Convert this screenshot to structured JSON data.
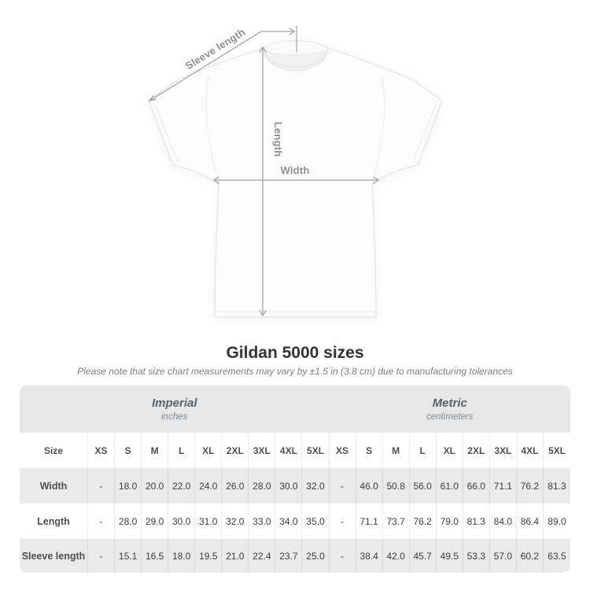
{
  "diagram": {
    "labels": {
      "sleeve": "Sleeve length",
      "length": "Length",
      "width": "Width"
    }
  },
  "chart_data": {
    "type": "table",
    "title": "Gildan 5000 sizes",
    "note": "Please note that size chart measurements may vary by ±1.5 in (3.8 cm) due to manufacturing tolerances",
    "size_header": "Size",
    "groups": [
      {
        "label": "Imperial",
        "unit": "inches"
      },
      {
        "label": "Metric",
        "unit": "centimeters"
      }
    ],
    "sizes": [
      "XS",
      "S",
      "M",
      "L",
      "XL",
      "2XL",
      "3XL",
      "4XL",
      "5XL"
    ],
    "rows": [
      {
        "label": "Width",
        "imperial": [
          "-",
          "18.0",
          "20.0",
          "22.0",
          "24.0",
          "26.0",
          "28.0",
          "30.0",
          "32.0"
        ],
        "metric": [
          "-",
          "46.0",
          "50.8",
          "56.0",
          "61.0",
          "66.0",
          "71.1",
          "76.2",
          "81.3"
        ]
      },
      {
        "label": "Length",
        "imperial": [
          "-",
          "28.0",
          "29.0",
          "30.0",
          "31.0",
          "32.0",
          "33.0",
          "34.0",
          "35.0"
        ],
        "metric": [
          "-",
          "71.1",
          "73.7",
          "76.2",
          "79.0",
          "81.3",
          "84.0",
          "86.4",
          "89.0"
        ]
      },
      {
        "label": "Sleeve length",
        "imperial": [
          "-",
          "15.1",
          "16.5",
          "18.0",
          "19.5",
          "21.0",
          "22.4",
          "23.7",
          "25.0"
        ],
        "metric": [
          "-",
          "38.4",
          "42.0",
          "45.7",
          "49.5",
          "53.3",
          "57.0",
          "60.2",
          "63.5"
        ]
      }
    ]
  },
  "colors": {
    "header_band": "#e7e7e7",
    "row_stripe": "#eaeaea",
    "arrow": "#a0a0a0",
    "shirt_outline": "#e7e7e7"
  }
}
